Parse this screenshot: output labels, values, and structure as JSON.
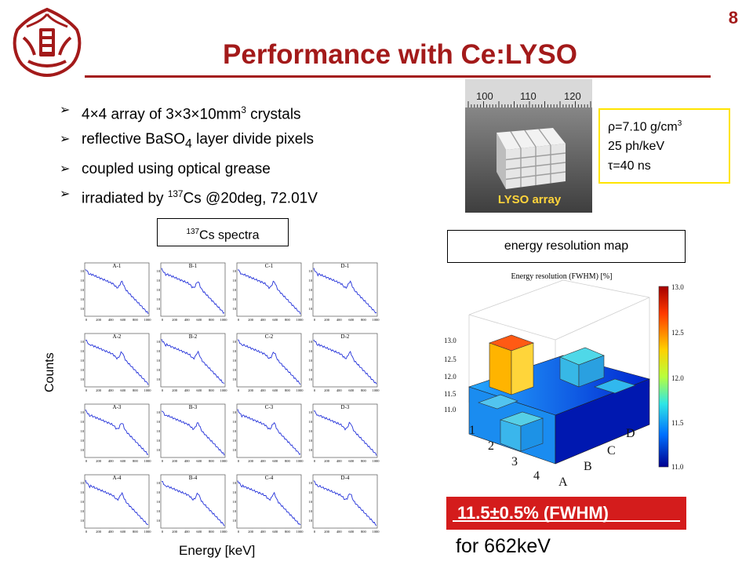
{
  "slide": {
    "page_number": "8",
    "title": "Performance with Ce:LYSO"
  },
  "bullets": [
    {
      "pre": "4×4 array of 3×3×10mm",
      "sup": "3",
      "post": " crystals"
    },
    {
      "pre": "reflective BaSO",
      "sub": "4",
      "post": " layer divide pixels"
    },
    {
      "pre": "coupled using optical grease",
      "post": ""
    },
    {
      "pre": "irradiated by ",
      "sup": "137",
      "post": "Cs @20deg, 72.01V"
    }
  ],
  "photo": {
    "caption": "LYSO array",
    "ruler_labels": [
      "100",
      "110",
      "120"
    ]
  },
  "properties": {
    "density": "ρ=7.10 g/cm",
    "density_sup": "3",
    "light_yield": "25 ph/keV",
    "decay": "τ=40 ns"
  },
  "spectra": {
    "box_sup": "137",
    "box_label": "Cs spectra",
    "y_axis": "Counts",
    "x_axis": "Energy [keV]",
    "panels": [
      "A-1",
      "B-1",
      "C-1",
      "D-1",
      "A-2",
      "B-2",
      "C-2",
      "D-2",
      "A-3",
      "B-3",
      "C-3",
      "D-3",
      "A-4",
      "B-4",
      "C-4",
      "D-4"
    ],
    "x_ticks": [
      "0",
      "200",
      "400",
      "600",
      "800",
      "1000"
    ]
  },
  "energy_map": {
    "box_label": "energy resolution map",
    "plot_title": "Energy resolution (FWHM) [%]",
    "colorbar_ticks": [
      "13.0",
      "12.5",
      "12.0",
      "11.5",
      "11.0"
    ],
    "z_ticks": [
      "13.0",
      "12.5",
      "12.0",
      "11.5",
      "11.0"
    ],
    "rows": [
      "1",
      "2",
      "3",
      "4"
    ],
    "cols": [
      "A",
      "B",
      "C",
      "D"
    ]
  },
  "result": {
    "value": "11.5±0.5% (FWHM)",
    "energy": "for 662keV"
  },
  "colors": {
    "title": "#a31a1a",
    "result_bg": "#d41c1c",
    "props_border": "#ffe400",
    "caption": "#ffd43b"
  }
}
